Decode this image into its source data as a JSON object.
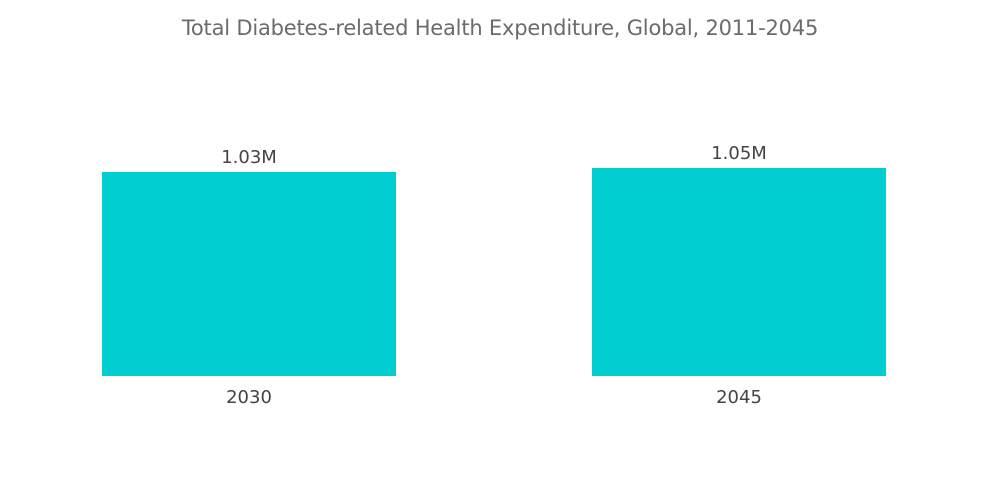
{
  "chart_data": {
    "type": "bar",
    "title": "Total Diabetes-related Health Expenditure, Global, 2011-2045",
    "categories": [
      "2030",
      "2045"
    ],
    "values": [
      1.03,
      1.05
    ],
    "value_labels": [
      "1.03M",
      "1.05M"
    ],
    "unit": "M",
    "xlabel": "",
    "ylabel": "",
    "ylim": [
      0,
      1.05
    ],
    "grid": false,
    "legend": "none",
    "bar_color": "#00CED1",
    "label_color": "#444444",
    "title_color": "#6b6b6b"
  }
}
